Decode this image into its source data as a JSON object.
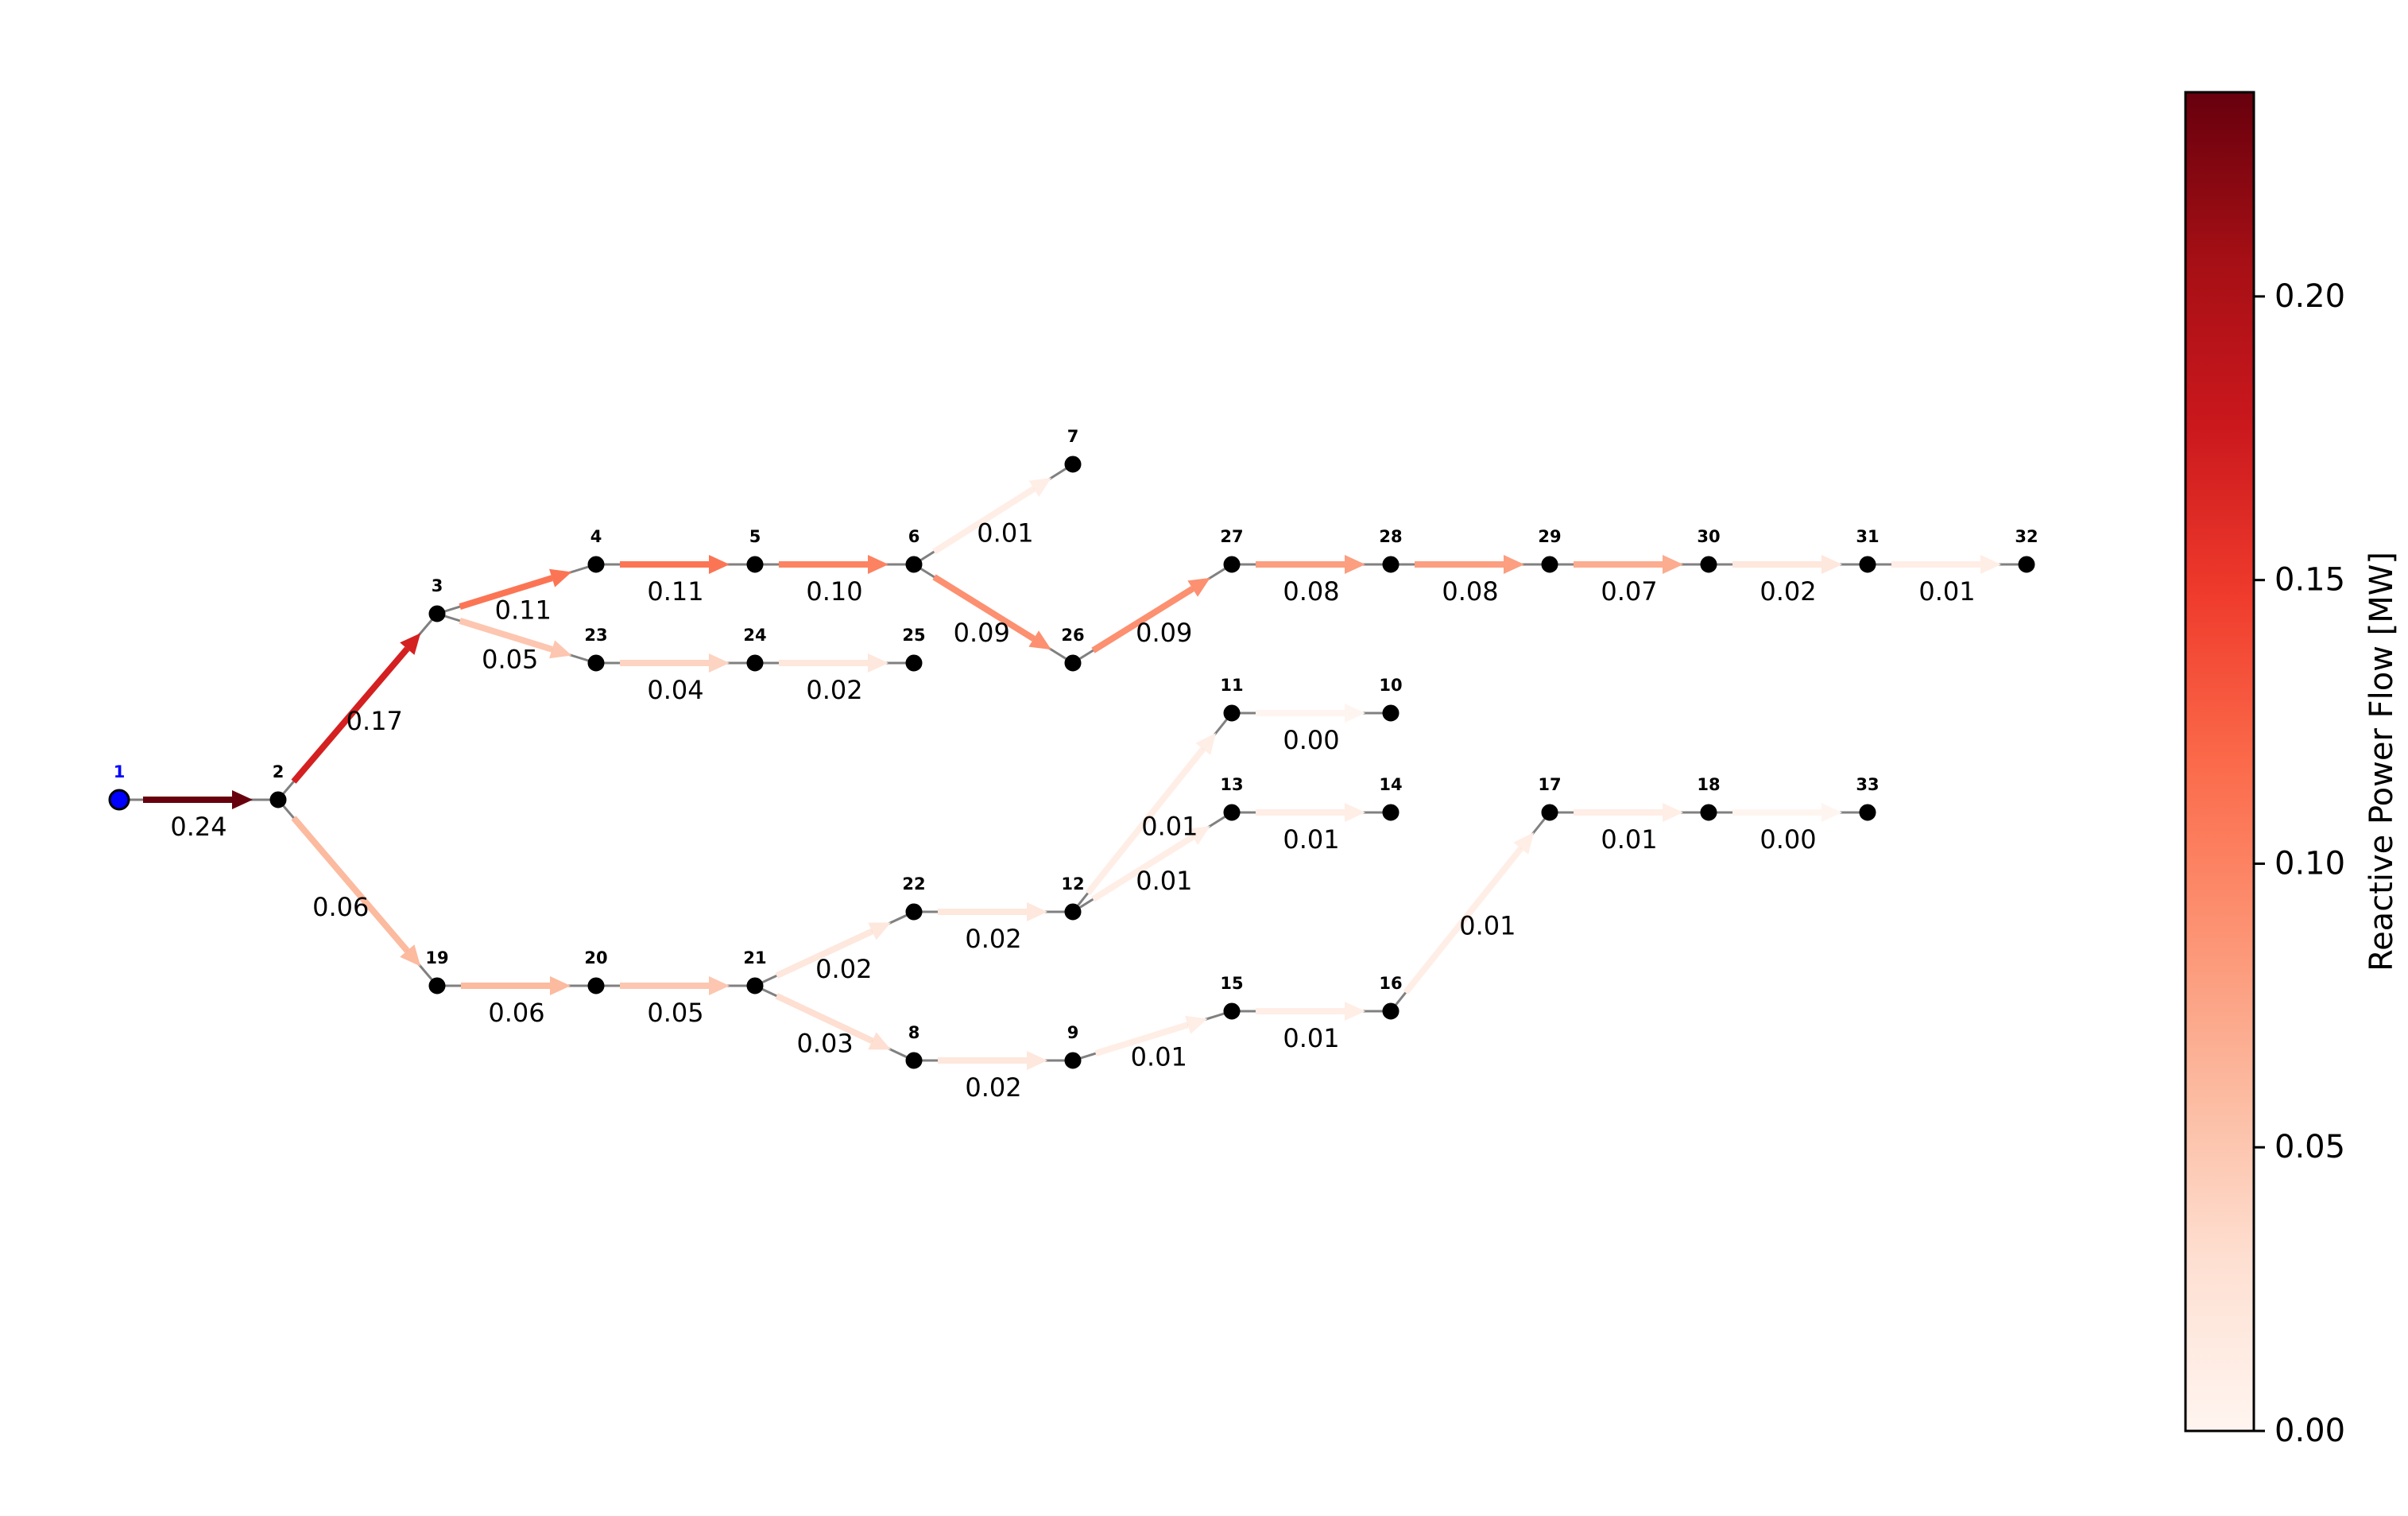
{
  "diagram": {
    "root_node": "1",
    "nodes": [
      "1",
      "2",
      "3",
      "4",
      "5",
      "6",
      "7",
      "8",
      "9",
      "10",
      "11",
      "12",
      "13",
      "14",
      "15",
      "16",
      "17",
      "18",
      "19",
      "20",
      "21",
      "22",
      "23",
      "24",
      "25",
      "26",
      "27",
      "28",
      "29",
      "30",
      "31",
      "32",
      "33"
    ],
    "edges": [
      {
        "from": "1",
        "to": "2",
        "value": 0.24,
        "label": "0.24"
      },
      {
        "from": "2",
        "to": "3",
        "value": 0.17,
        "label": "0.17"
      },
      {
        "from": "2",
        "to": "19",
        "value": 0.06,
        "label": "0.06"
      },
      {
        "from": "3",
        "to": "4",
        "value": 0.11,
        "label": "0.11"
      },
      {
        "from": "3",
        "to": "23",
        "value": 0.05,
        "label": "0.05"
      },
      {
        "from": "4",
        "to": "5",
        "value": 0.11,
        "label": "0.11"
      },
      {
        "from": "5",
        "to": "6",
        "value": 0.1,
        "label": "0.10"
      },
      {
        "from": "6",
        "to": "7",
        "value": 0.01,
        "label": "0.01"
      },
      {
        "from": "6",
        "to": "26",
        "value": 0.09,
        "label": "0.09"
      },
      {
        "from": "26",
        "to": "27",
        "value": 0.09,
        "label": "0.09"
      },
      {
        "from": "27",
        "to": "28",
        "value": 0.08,
        "label": "0.08"
      },
      {
        "from": "28",
        "to": "29",
        "value": 0.08,
        "label": "0.08"
      },
      {
        "from": "29",
        "to": "30",
        "value": 0.07,
        "label": "0.07"
      },
      {
        "from": "30",
        "to": "31",
        "value": 0.02,
        "label": "0.02"
      },
      {
        "from": "31",
        "to": "32",
        "value": 0.01,
        "label": "0.01"
      },
      {
        "from": "23",
        "to": "24",
        "value": 0.04,
        "label": "0.04"
      },
      {
        "from": "24",
        "to": "25",
        "value": 0.02,
        "label": "0.02"
      },
      {
        "from": "19",
        "to": "20",
        "value": 0.06,
        "label": "0.06"
      },
      {
        "from": "20",
        "to": "21",
        "value": 0.05,
        "label": "0.05"
      },
      {
        "from": "21",
        "to": "22",
        "value": 0.02,
        "label": "0.02"
      },
      {
        "from": "21",
        "to": "8",
        "value": 0.03,
        "label": "0.03"
      },
      {
        "from": "22",
        "to": "12",
        "value": 0.02,
        "label": "0.02"
      },
      {
        "from": "12",
        "to": "11",
        "value": 0.01,
        "label": "0.01"
      },
      {
        "from": "12",
        "to": "13",
        "value": 0.01,
        "label": "0.01"
      },
      {
        "from": "11",
        "to": "10",
        "value": 0.0,
        "label": "0.00"
      },
      {
        "from": "13",
        "to": "14",
        "value": 0.01,
        "label": "0.01"
      },
      {
        "from": "8",
        "to": "9",
        "value": 0.02,
        "label": "0.02"
      },
      {
        "from": "9",
        "to": "15",
        "value": 0.01,
        "label": "0.01"
      },
      {
        "from": "15",
        "to": "16",
        "value": 0.01,
        "label": "0.01"
      },
      {
        "from": "16",
        "to": "17",
        "value": 0.01,
        "label": "0.01"
      },
      {
        "from": "17",
        "to": "18",
        "value": 0.01,
        "label": "0.01"
      },
      {
        "from": "18",
        "to": "33",
        "value": 0.0,
        "label": "0.00"
      }
    ]
  },
  "colorbar": {
    "label": "Reactive Power Flow [MW]",
    "range": [
      0,
      0.236
    ],
    "ticks": [
      "0.00",
      "0.05",
      "0.10",
      "0.15",
      "0.20"
    ],
    "tick_values": [
      0,
      0.05,
      0.1,
      0.15,
      0.2
    ],
    "colormap": "Reds"
  },
  "colors": {
    "root_node": "#0000ff",
    "root_label": "#0000ff",
    "node": "#000000",
    "edge_base": "#808080"
  }
}
